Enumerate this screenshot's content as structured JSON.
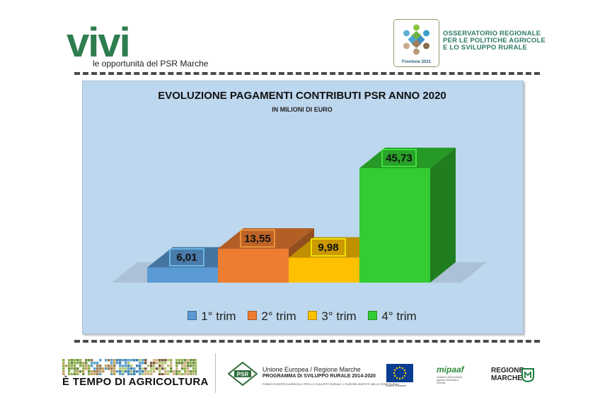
{
  "header": {
    "logo_word": "vivi",
    "logo_tagline": "le opportunità del PSR Marche",
    "observatory_lines": [
      "OSSERVATORIO REGIONALE",
      "PER LE POLITICHE AGRICOLE",
      "E LO SVILUPPO RURALE"
    ],
    "observatory_badge_text": "Frontone 2021"
  },
  "chart_data": {
    "type": "bar",
    "title": "EVOLUZIONE PAGAMENTI CONTRIBUTI PSR ANNO 2020",
    "subtitle": "IN MILIONI DI EURO",
    "categories": [
      "1° trim",
      "2° trim",
      "3° trim",
      "4° trim"
    ],
    "values": [
      6.01,
      13.55,
      9.98,
      45.73
    ],
    "value_labels": [
      "6,01",
      "13,55",
      "9,98",
      "45,73"
    ],
    "colors": [
      "#5b9bd5",
      "#ed7d31",
      "#ffc000",
      "#33cc33"
    ],
    "ylim": [
      0,
      48
    ],
    "grid": false,
    "legend": "bottom",
    "style": "3d-columns"
  },
  "footer": {
    "agri_text": "È TEMPO DI AGRICOLTURA",
    "psr_text": "PSR",
    "ue_line1": "Unione Europea / Regione Marche",
    "ue_line2": "PROGRAMMA DI SVILUPPO RURALE 2014-2020",
    "ue_line3": "FONDO EUROPEO AGRICOLO PER LO SVILUPPO RURALE: L'EUROPA INVESTE NELLE ZONE RURALI",
    "eu_caption": "Unione Europea",
    "mipaaf_text": "mipaaf",
    "mipaaf_caption": "ministero delle politiche agricole alimentari e forestali",
    "regione_lines": [
      "REGIONE",
      "MARCHE"
    ]
  }
}
